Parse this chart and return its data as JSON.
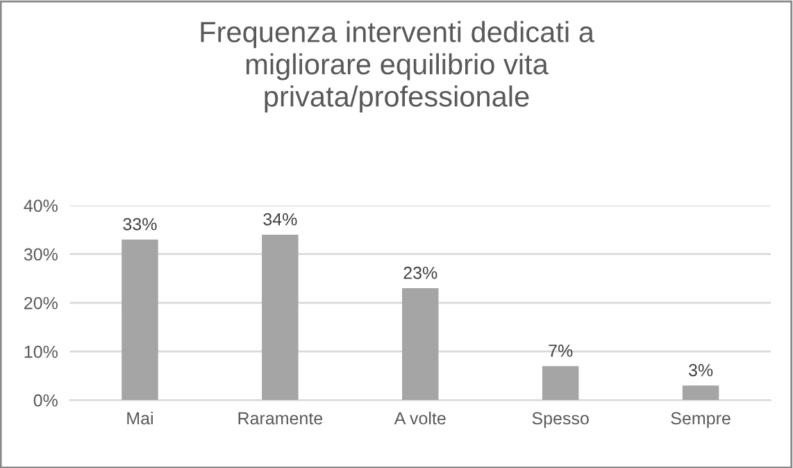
{
  "chart_data": {
    "type": "bar",
    "title": "Frequenza interventi dedicati a\nmigliorare equilibrio vita\nprivata/professionale",
    "categories": [
      "Mai",
      "Raramente",
      "A volte",
      "Spesso",
      "Sempre"
    ],
    "values": [
      33,
      34,
      23,
      7,
      3
    ],
    "value_labels": [
      "33%",
      "34%",
      "23%",
      "7%",
      "3%"
    ],
    "color": "#a5a5a5",
    "ylim": [
      0,
      40
    ],
    "yticks": [
      {
        "value": 0,
        "label": "0%"
      },
      {
        "value": 10,
        "label": "10%"
      },
      {
        "value": 20,
        "label": "20%"
      },
      {
        "value": 30,
        "label": "30%"
      },
      {
        "value": 40,
        "label": "40%"
      }
    ],
    "grid": "y",
    "legend": false
  }
}
